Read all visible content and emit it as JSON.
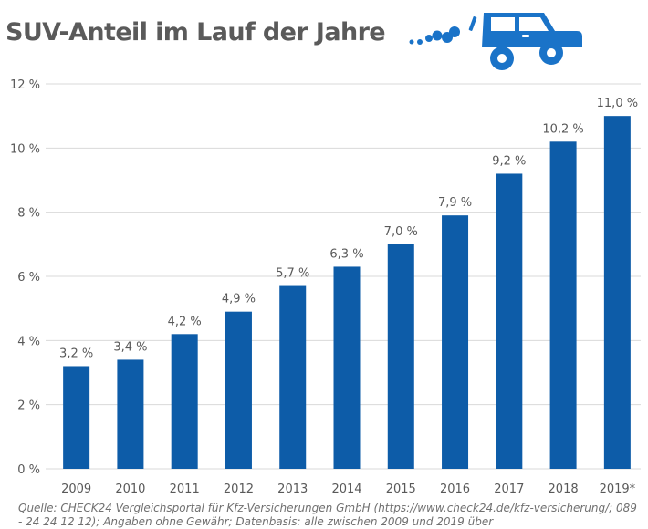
{
  "title": "SUV-Anteil im Lauf der Jahre",
  "source": "Quelle: CHECK24 Vergleichsportal für Kfz-Versicherungen GmbH (https://www.check24.de/kfz-versicherung/; 089 - 24 24 12 12); Angaben ohne Gewähr; Datenbasis: alle zwischen 2009 und 2019 über",
  "icon": "suv-car-exhaust-icon",
  "colors": {
    "bar": "#0d5ca8",
    "icon": "#1a73c8",
    "title": "#5a5a5a",
    "grid": "#d9d9d9",
    "text": "#595959"
  },
  "chart_data": {
    "type": "bar",
    "title": "SUV-Anteil im Lauf der Jahre",
    "categories": [
      "2009",
      "2010",
      "2011",
      "2012",
      "2013",
      "2014",
      "2015",
      "2016",
      "2017",
      "2018",
      "2019*"
    ],
    "values": [
      3.2,
      3.4,
      4.2,
      4.9,
      5.7,
      6.3,
      7.0,
      7.9,
      9.2,
      10.2,
      11.0
    ],
    "data_labels": [
      "3,2 %",
      "3,4 %",
      "4,2 %",
      "4,9 %",
      "5,7 %",
      "6,3 %",
      "7,0 %",
      "7,9 %",
      "9,2 %",
      "10,2 %",
      "11,0 %"
    ],
    "yticks": [
      0,
      2,
      4,
      6,
      8,
      10,
      12
    ],
    "ytick_labels": [
      "0 %",
      "2 %",
      "4 %",
      "6 %",
      "8 %",
      "10 %",
      "12 %"
    ],
    "ylim": [
      0,
      12
    ],
    "xlabel": "",
    "ylabel": "",
    "grid": true,
    "legend": "none"
  }
}
